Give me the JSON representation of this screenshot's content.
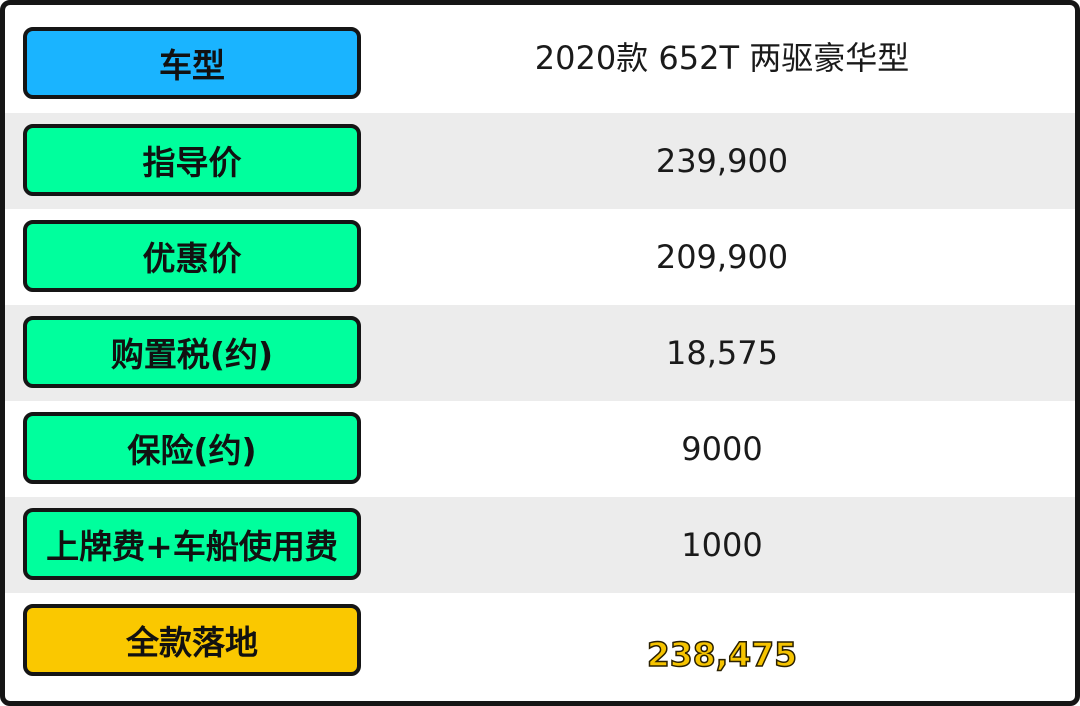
{
  "rows": [
    {
      "label": "车型",
      "value": "2020款 652T 两驱豪华型"
    },
    {
      "label": "指导价",
      "value": "239,900"
    },
    {
      "label": "优惠价",
      "value": "209,900"
    },
    {
      "label": "购置税(约)",
      "value": "18,575"
    },
    {
      "label": "保险(约)",
      "value": "9000"
    },
    {
      "label": "上牌费+车船使用费",
      "value": "1000"
    },
    {
      "label": "全款落地",
      "value": "238,475"
    }
  ],
  "colors": {
    "label_first": "#1ab4ff",
    "label_middle": "#00ff9d",
    "label_total": "#fac800",
    "total_value": "#f6c400",
    "row_alt_bg": "#ececec"
  }
}
